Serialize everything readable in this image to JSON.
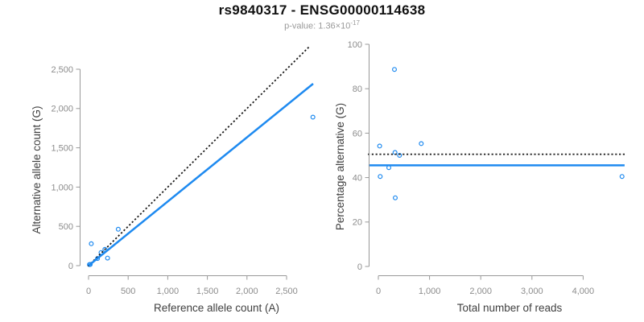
{
  "header": {
    "title": "rs9840317 - ENSG00000114638",
    "pvalue_prefix": "p-value: 1.36×10",
    "pvalue_exponent": "-17"
  },
  "colors": {
    "accent_blue": "#1E8AF0",
    "reference_black": "#1A1A1A"
  },
  "chart_data": [
    {
      "type": "scatter",
      "name": "allele-counts-scatter",
      "xlabel": "Reference allele count (A)",
      "ylabel": "Alternative allele count (G)",
      "xlim": [
        0,
        2900
      ],
      "ylim": [
        0,
        2900
      ],
      "grid": false,
      "legend": false,
      "marker": "open-circle",
      "xticks": {
        "values": [
          0,
          500,
          1000,
          1500,
          2000,
          2500
        ],
        "labels": [
          "0",
          "500",
          "1,000",
          "1,500",
          "2,000",
          "2,500"
        ]
      },
      "yticks": {
        "values": [
          0,
          500,
          1000,
          1500,
          2000,
          2500
        ],
        "labels": [
          "0",
          "500",
          "1,000",
          "1,500",
          "2,000",
          "2,500"
        ]
      },
      "points": [
        [
          11,
          14
        ],
        [
          21,
          15
        ],
        [
          35,
          279
        ],
        [
          113,
          91
        ],
        [
          158,
          167
        ],
        [
          206,
          207
        ],
        [
          240,
          96
        ],
        [
          375,
          463
        ],
        [
          2832,
          1890
        ]
      ],
      "lines": [
        {
          "name": "identity-line",
          "dash": "dotted",
          "color": "reference_black",
          "from": [
            0,
            0
          ],
          "to": [
            2800,
            2800
          ]
        },
        {
          "name": "regression-line",
          "dash": "solid",
          "color": "accent_blue",
          "from": [
            0,
            0
          ],
          "to": [
            2835,
            2316
          ]
        }
      ]
    },
    {
      "type": "scatter",
      "name": "percentage-vs-reads-scatter",
      "xlabel": "Total number of reads",
      "ylabel": "Percentage alternative (G)",
      "xlim": [
        0,
        4900
      ],
      "ylim": [
        0,
        100
      ],
      "grid": false,
      "legend": false,
      "marker": "open-circle",
      "xticks": {
        "values": [
          0,
          1000,
          2000,
          3000,
          4000
        ],
        "labels": [
          "0",
          "1,000",
          "2,000",
          "3,000",
          "4,000"
        ]
      },
      "yticks": {
        "values": [
          0,
          20,
          40,
          60,
          80,
          100
        ],
        "labels": [
          "0",
          "20",
          "40",
          "60",
          "80",
          "100"
        ]
      },
      "points": [
        [
          25,
          54.2
        ],
        [
          36,
          40.5
        ],
        [
          204,
          44.5
        ],
        [
          314,
          88.7
        ],
        [
          325,
          51.3
        ],
        [
          330,
          30.9
        ],
        [
          413,
          50.0
        ],
        [
          838,
          55.3
        ],
        [
          4760,
          40.5
        ]
      ],
      "lines": [
        {
          "name": "expected-50pct-line",
          "dash": "dotted",
          "color": "reference_black",
          "from": [
            -190,
            50.5
          ],
          "to": [
            4810,
            50.5
          ]
        },
        {
          "name": "mean-percentage-line",
          "dash": "solid",
          "color": "accent_blue",
          "from": [
            -190,
            45.5
          ],
          "to": [
            4810,
            45.5
          ]
        }
      ]
    }
  ]
}
